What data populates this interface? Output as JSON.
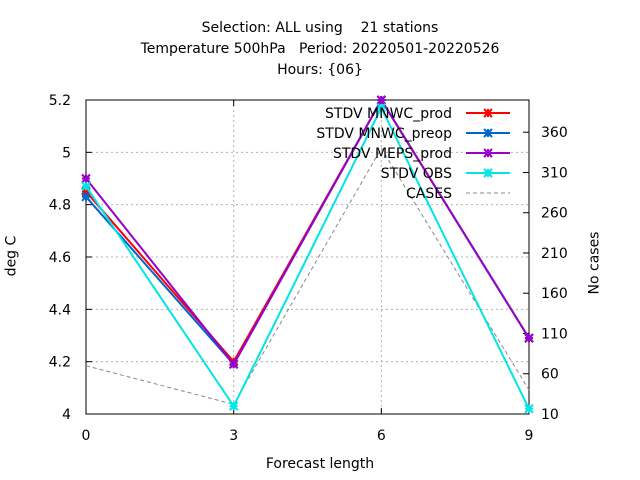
{
  "chart_data": {
    "type": "line",
    "title_lines": [
      "Selection: ALL using    21 stations",
      "Temperature 500hPa   Period: 20220501-20220526",
      "Hours: {06}"
    ],
    "xlabel": "Forecast length",
    "ylabel": "deg C",
    "y2label": "No cases",
    "xlim": [
      0,
      9
    ],
    "ylim": [
      4.0,
      5.2
    ],
    "y2lim": [
      10,
      400
    ],
    "x_ticks": [
      0,
      3,
      6,
      9
    ],
    "y_ticks": [
      "4",
      "4.2",
      "4.4",
      "4.6",
      "4.8",
      "5",
      "5.2"
    ],
    "y2_ticks": [
      "10",
      "60",
      "110",
      "160",
      "210",
      "260",
      "310",
      "360"
    ],
    "grid": true,
    "legend_position": "top-right",
    "x": [
      0,
      3,
      6,
      9
    ],
    "series": [
      {
        "name": "STDV MNWC_prod",
        "axis": "left",
        "color": "#ff0000",
        "marker": "x",
        "values": [
          4.85,
          4.2,
          5.2,
          4.29
        ]
      },
      {
        "name": "STDV MNWC_preop",
        "axis": "left",
        "color": "#0066cc",
        "marker": "x",
        "values": [
          4.83,
          4.19,
          5.2,
          4.29
        ]
      },
      {
        "name": "STDV MEPS_prod",
        "axis": "left",
        "color": "#9900cc",
        "marker": "x",
        "values": [
          4.9,
          4.19,
          5.2,
          4.29
        ]
      },
      {
        "name": "STDV OBS",
        "axis": "left",
        "color": "#00e5e5",
        "marker": "x",
        "values": [
          4.87,
          4.03,
          5.17,
          4.02
        ]
      },
      {
        "name": "CASES",
        "axis": "right",
        "color": "#888888",
        "dashed": true,
        "values": [
          70,
          22,
          340,
          40
        ]
      }
    ]
  }
}
